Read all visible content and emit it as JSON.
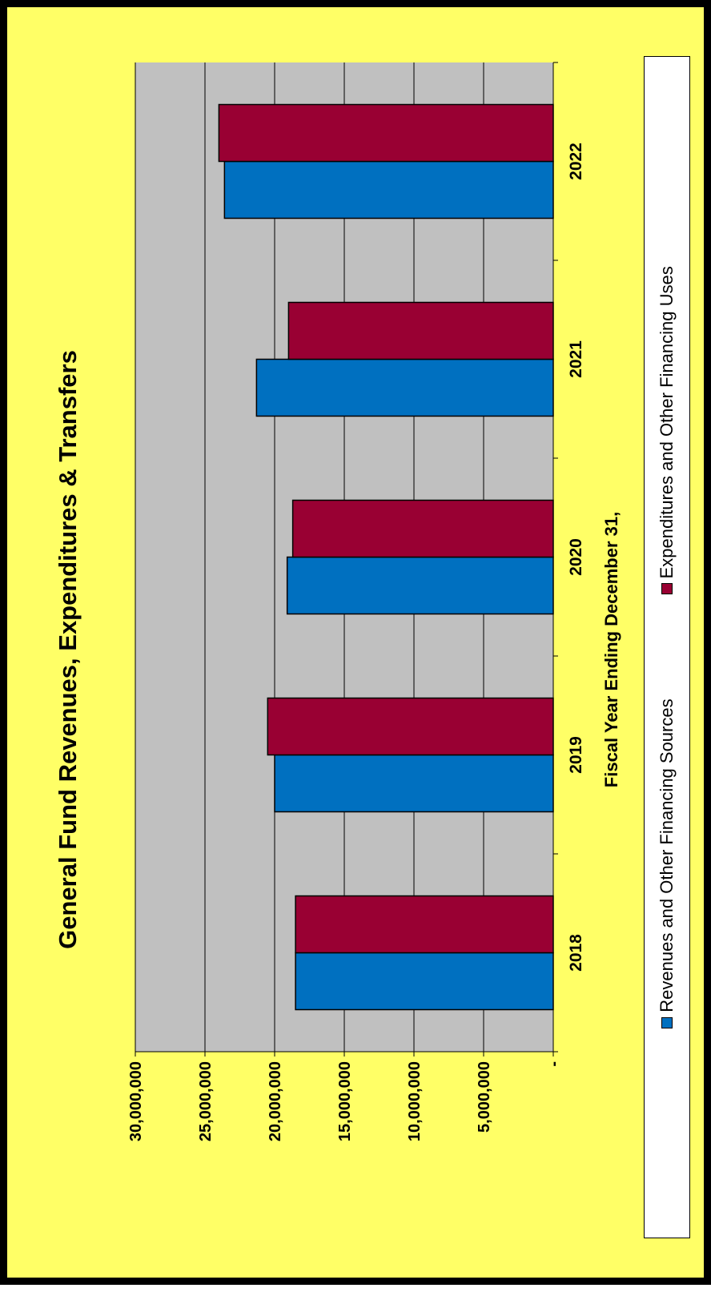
{
  "chart_data": {
    "type": "bar",
    "title": "General Fund Revenues, Expenditures & Transfers",
    "xlabel": "Fiscal Year Ending December 31,",
    "ylabel": "",
    "categories": [
      "2018",
      "2019",
      "2020",
      "2021",
      "2022"
    ],
    "series": [
      {
        "name": "Revenues and Other Financing Sources",
        "color": "#0070c0",
        "values": [
          18500000,
          20000000,
          19100000,
          21300000,
          23600000
        ]
      },
      {
        "name": "Expenditures and Other Financing Uses",
        "color": "#990033",
        "values": [
          18500000,
          20500000,
          18700000,
          19000000,
          24000000
        ]
      }
    ],
    "ylim": [
      0,
      30000000
    ],
    "y_ticks": [
      0,
      5000000,
      10000000,
      15000000,
      20000000,
      25000000,
      30000000
    ],
    "y_tick_labels": [
      "-",
      "5,000,000",
      "10,000,000",
      "15,000,000",
      "20,000,000",
      "25,000,000",
      "30,000,000"
    ],
    "grid": true,
    "legend": "bottom",
    "plot_background": "#c0c0c0",
    "page_background": "#ffff66"
  }
}
